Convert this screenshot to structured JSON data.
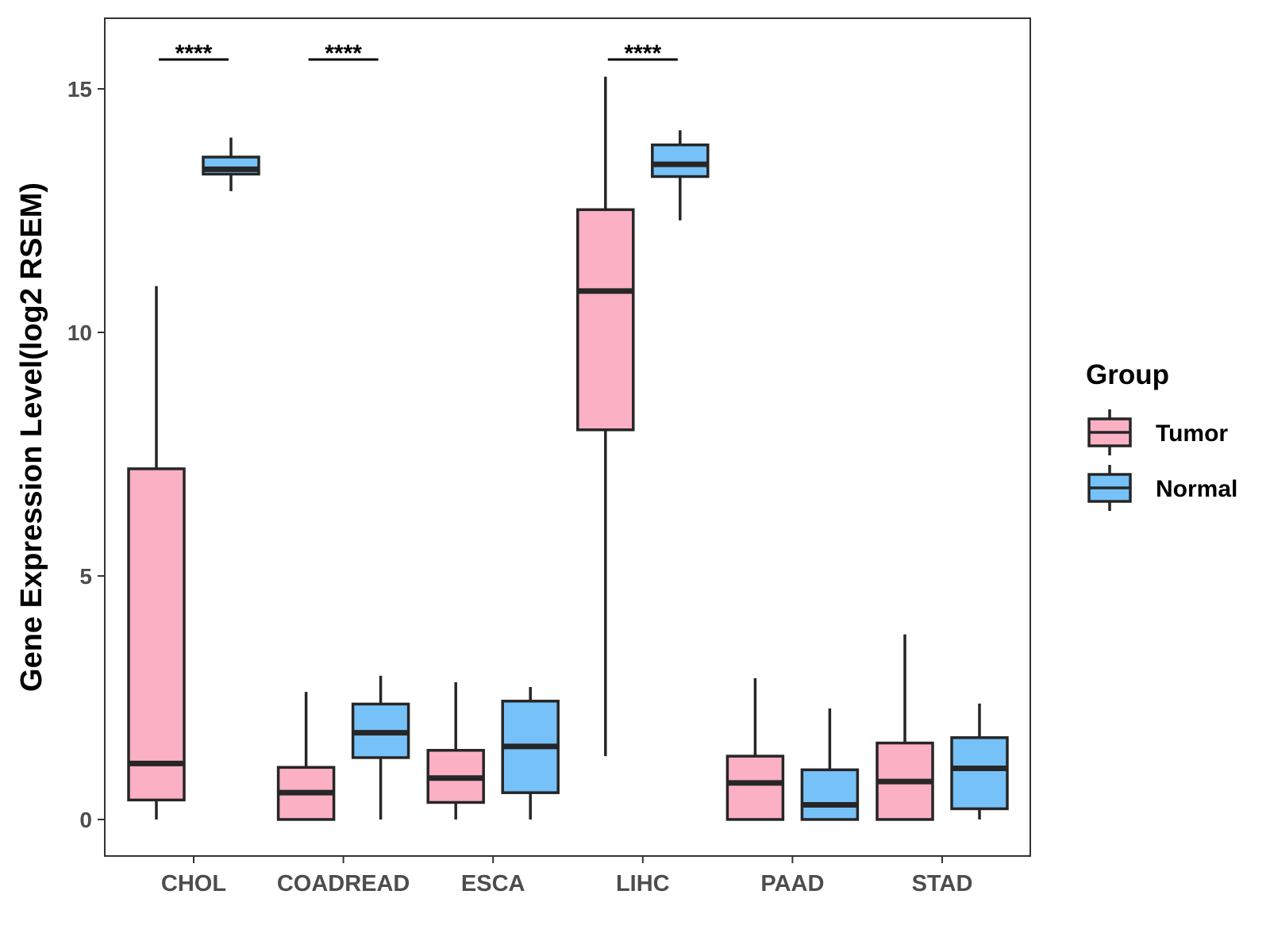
{
  "chart_data": {
    "type": "boxplot",
    "title": "",
    "xlabel": "",
    "ylabel": "Gene Expression Level(log2 RSEM)",
    "ylim": [
      -0.75,
      16.45
    ],
    "yticks": [
      0,
      5,
      10,
      15
    ],
    "grid": false,
    "legend": {
      "title": "Group",
      "placement": "right"
    },
    "categories": [
      "CHOL",
      "COADREAD",
      "ESCA",
      "LIHC",
      "PAAD",
      "STAD"
    ],
    "series": [
      {
        "name": "Tumor",
        "color": "#fbb0c3",
        "boxes": [
          {
            "min": 0.0,
            "q1": 0.4,
            "median": 1.15,
            "q3": 7.2,
            "max": 10.95
          },
          {
            "min": 0.0,
            "q1": 0.0,
            "median": 0.55,
            "q3": 1.07,
            "max": 2.62
          },
          {
            "min": 0.0,
            "q1": 0.35,
            "median": 0.85,
            "q3": 1.42,
            "max": 2.82
          },
          {
            "min": 1.3,
            "q1": 8.0,
            "median": 10.85,
            "q3": 12.52,
            "max": 15.25
          },
          {
            "min": 0.0,
            "q1": 0.0,
            "median": 0.75,
            "q3": 1.3,
            "max": 2.9
          },
          {
            "min": 0.0,
            "q1": 0.0,
            "median": 0.78,
            "q3": 1.57,
            "max": 3.8
          }
        ]
      },
      {
        "name": "Normal",
        "color": "#76c1f7",
        "boxes": [
          {
            "min": 12.9,
            "q1": 13.25,
            "median": 13.35,
            "q3": 13.6,
            "max": 14.0
          },
          {
            "min": 0.0,
            "q1": 1.27,
            "median": 1.78,
            "q3": 2.37,
            "max": 2.95
          },
          {
            "min": 0.0,
            "q1": 0.55,
            "median": 1.5,
            "q3": 2.43,
            "max": 2.72
          },
          {
            "min": 12.3,
            "q1": 13.2,
            "median": 13.45,
            "q3": 13.85,
            "max": 14.15
          },
          {
            "min": 0.0,
            "q1": 0.0,
            "median": 0.3,
            "q3": 1.02,
            "max": 2.28
          },
          {
            "min": 0.0,
            "q1": 0.22,
            "median": 1.05,
            "q3": 1.68,
            "max": 2.38
          }
        ]
      }
    ],
    "annotations": [
      {
        "category": "CHOL",
        "text": "****"
      },
      {
        "category": "COADREAD",
        "text": "****"
      },
      {
        "category": "LIHC",
        "text": "****"
      }
    ]
  }
}
